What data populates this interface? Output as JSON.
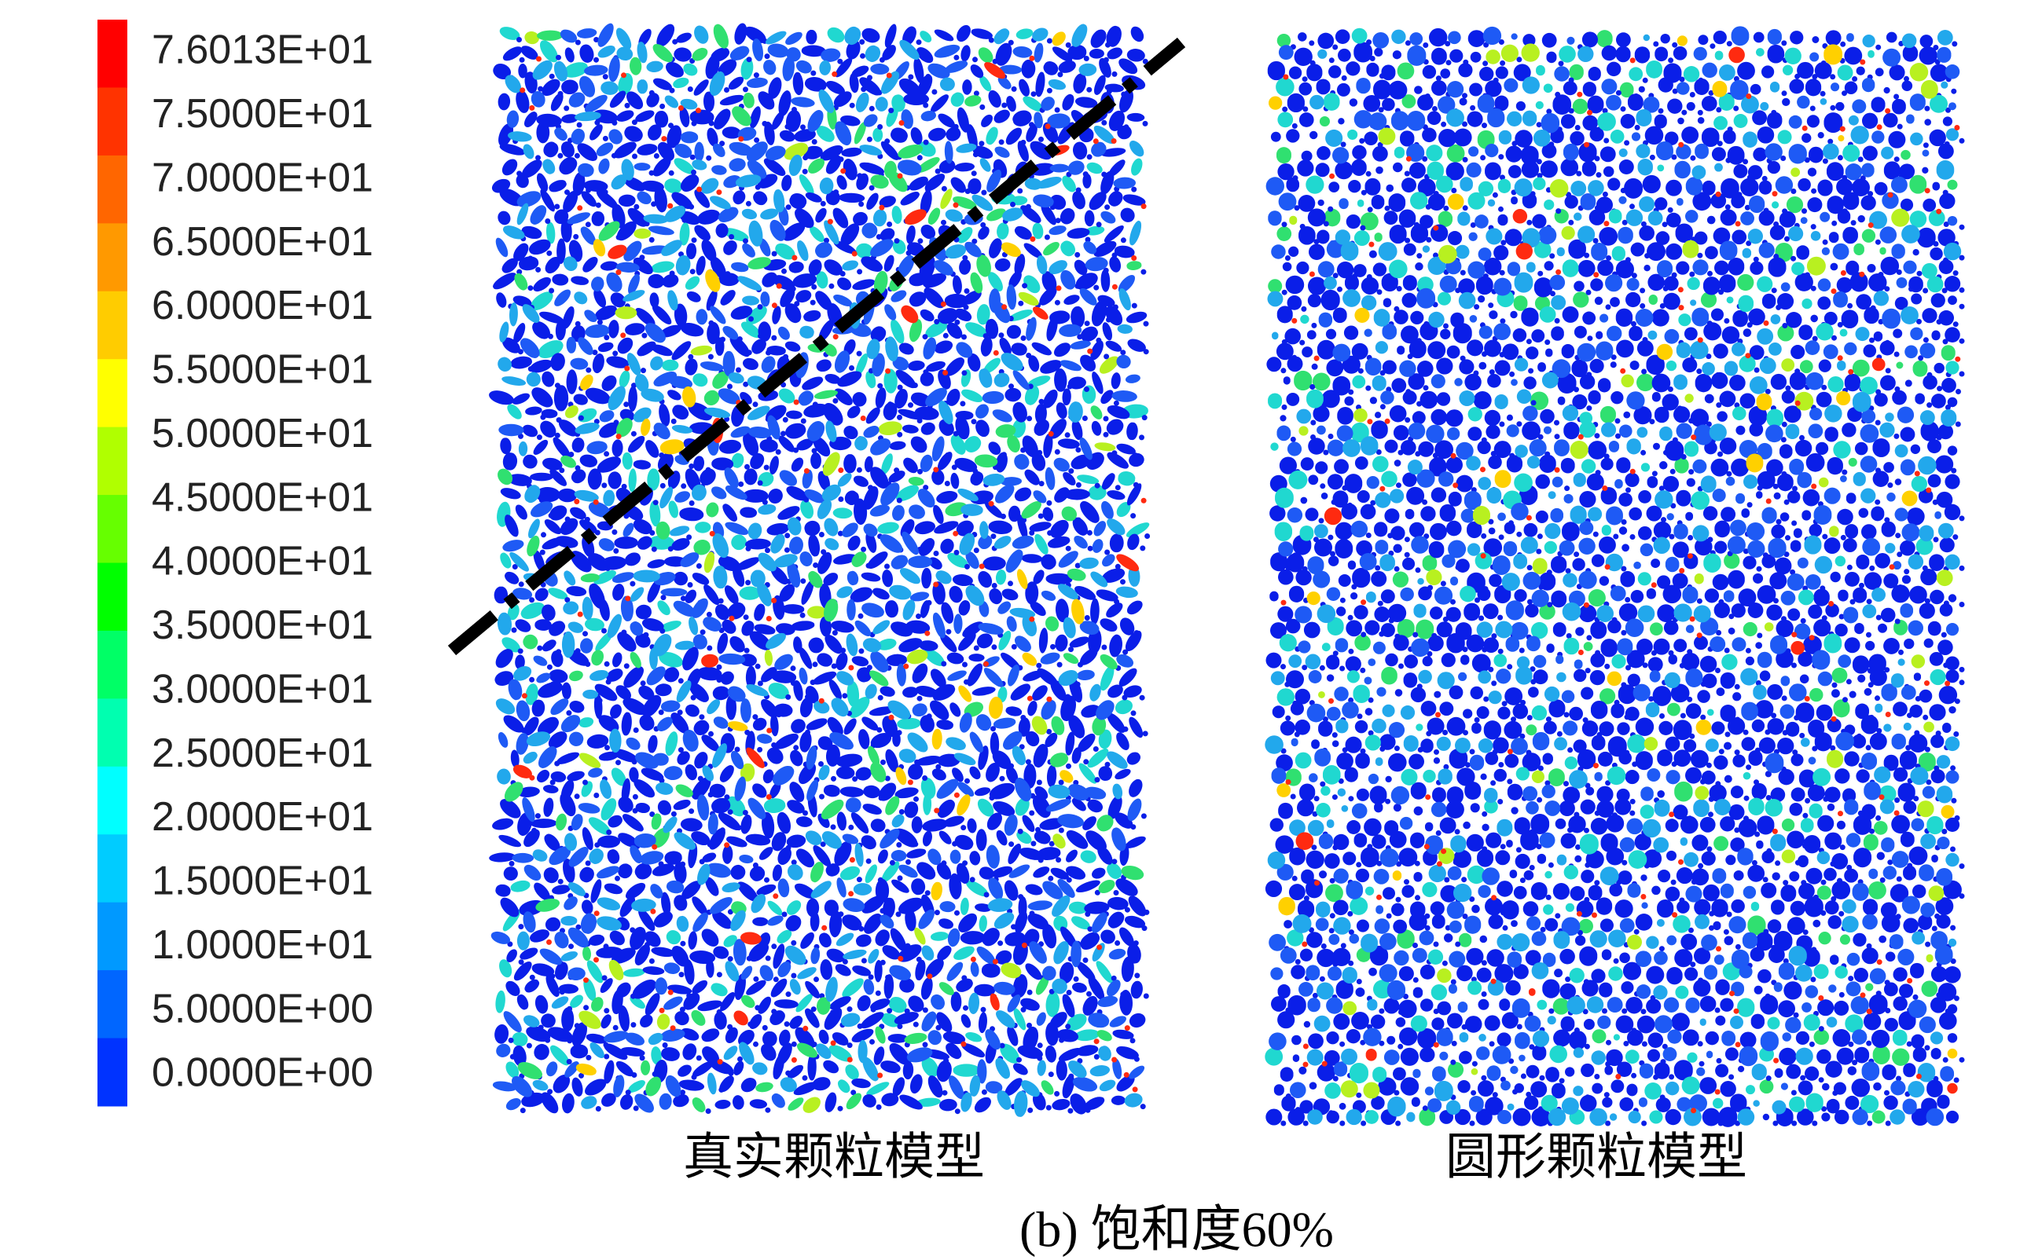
{
  "legend": {
    "labels": [
      "7.6013E+01",
      "7.5000E+01",
      "7.0000E+01",
      "6.5000E+01",
      "6.0000E+01",
      "5.5000E+01",
      "5.0000E+01",
      "4.5000E+01",
      "4.0000E+01",
      "3.5000E+01",
      "3.0000E+01",
      "2.5000E+01",
      "2.0000E+01",
      "1.5000E+01",
      "1.0000E+01",
      "5.0000E+00",
      "0.0000E+00"
    ]
  },
  "panels": [
    {
      "caption": "真实颗粒模型"
    },
    {
      "caption": "圆形颗粒模型"
    }
  ],
  "figure_caption": "(b) 饱和度60%"
}
